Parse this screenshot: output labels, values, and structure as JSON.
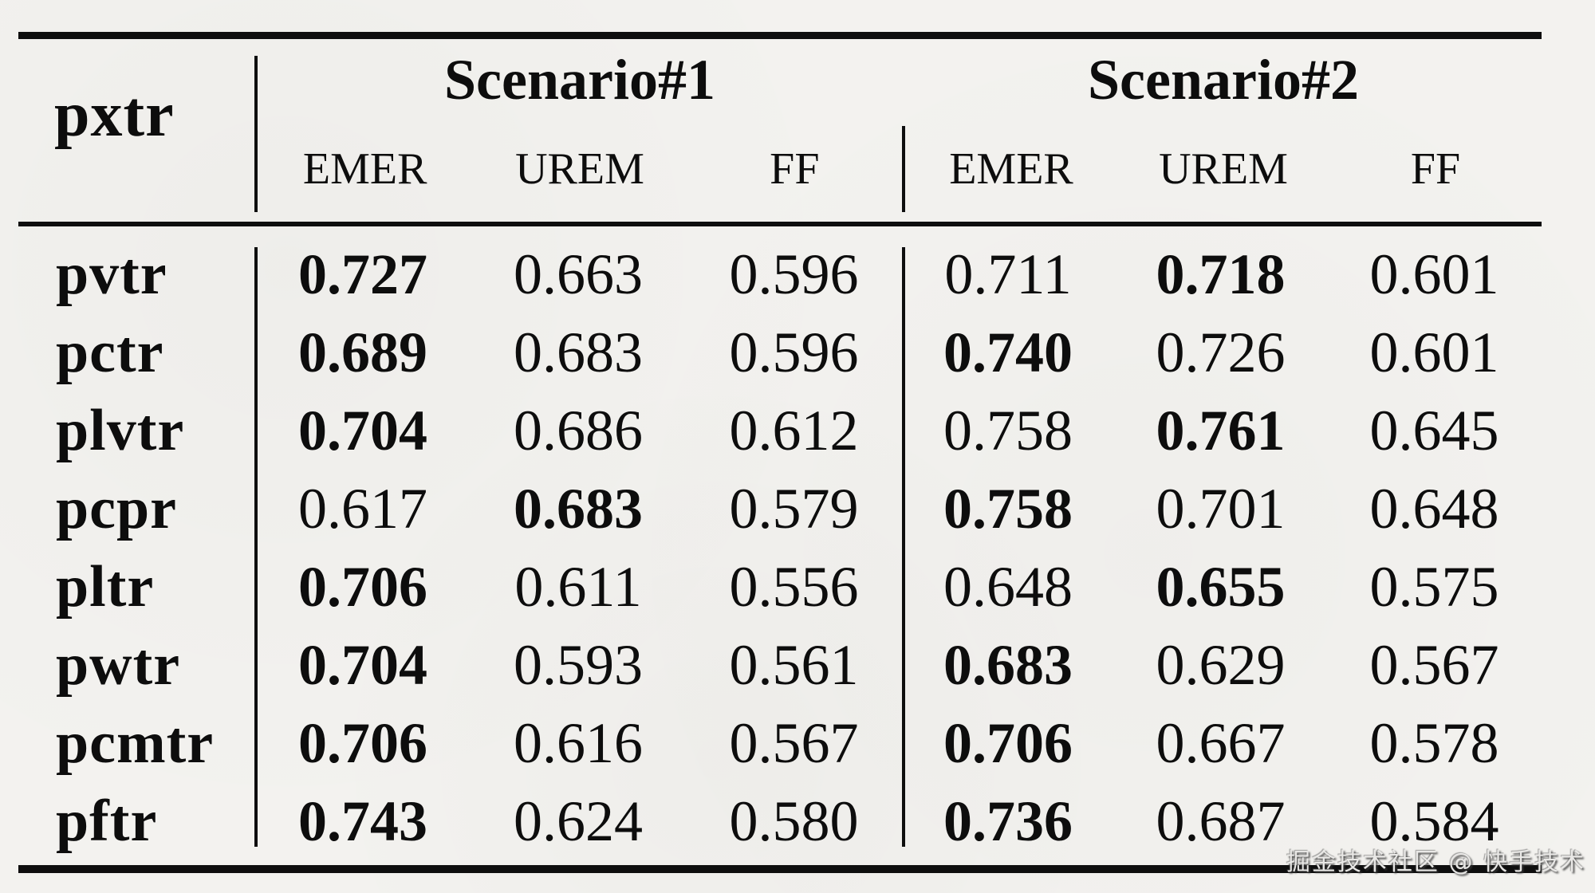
{
  "table": {
    "corner_label": "pxtr",
    "groups": [
      {
        "title": "Scenario#1",
        "columns": [
          "EMER",
          "UREM",
          "FF"
        ]
      },
      {
        "title": "Scenario#2",
        "columns": [
          "EMER",
          "UREM",
          "FF"
        ]
      }
    ],
    "rows": [
      {
        "label": "pvtr",
        "values": [
          "0.727",
          "0.663",
          "0.596",
          "0.711",
          "0.718",
          "0.601"
        ],
        "bold": [
          true,
          false,
          false,
          false,
          true,
          false
        ]
      },
      {
        "label": "pctr",
        "values": [
          "0.689",
          "0.683",
          "0.596",
          "0.740",
          "0.726",
          "0.601"
        ],
        "bold": [
          true,
          false,
          false,
          true,
          false,
          false
        ]
      },
      {
        "label": "plvtr",
        "values": [
          "0.704",
          "0.686",
          "0.612",
          "0.758",
          "0.761",
          "0.645"
        ],
        "bold": [
          true,
          false,
          false,
          false,
          true,
          false
        ]
      },
      {
        "label": "pcpr",
        "values": [
          "0.617",
          "0.683",
          "0.579",
          "0.758",
          "0.701",
          "0.648"
        ],
        "bold": [
          false,
          true,
          false,
          true,
          false,
          false
        ]
      },
      {
        "label": "pltr",
        "values": [
          "0.706",
          "0.611",
          "0.556",
          "0.648",
          "0.655",
          "0.575"
        ],
        "bold": [
          true,
          false,
          false,
          false,
          true,
          false
        ]
      },
      {
        "label": "pwtr",
        "values": [
          "0.704",
          "0.593",
          "0.561",
          "0.683",
          "0.629",
          "0.567"
        ],
        "bold": [
          true,
          false,
          false,
          true,
          false,
          false
        ]
      },
      {
        "label": "pcmtr",
        "values": [
          "0.706",
          "0.616",
          "0.567",
          "0.706",
          "0.667",
          "0.578"
        ],
        "bold": [
          true,
          false,
          false,
          true,
          false,
          false
        ]
      },
      {
        "label": "pftr",
        "values": [
          "0.743",
          "0.624",
          "0.580",
          "0.736",
          "0.687",
          "0.584"
        ],
        "bold": [
          true,
          false,
          false,
          true,
          false,
          false
        ]
      }
    ]
  },
  "chart_data": {
    "type": "table",
    "title": "",
    "row_header": "pxtr",
    "column_groups": [
      "Scenario#1",
      "Scenario#2"
    ],
    "columns": [
      "EMER",
      "UREM",
      "FF",
      "EMER",
      "UREM",
      "FF"
    ],
    "rows": [
      "pvtr",
      "pctr",
      "plvtr",
      "pcpr",
      "pltr",
      "pwtr",
      "pcmtr",
      "pftr"
    ],
    "values": [
      [
        0.727,
        0.663,
        0.596,
        0.711,
        0.718,
        0.601
      ],
      [
        0.689,
        0.683,
        0.596,
        0.74,
        0.726,
        0.601
      ],
      [
        0.704,
        0.686,
        0.612,
        0.758,
        0.761,
        0.645
      ],
      [
        0.617,
        0.683,
        0.579,
        0.758,
        0.701,
        0.648
      ],
      [
        0.706,
        0.611,
        0.556,
        0.648,
        0.655,
        0.575
      ],
      [
        0.704,
        0.593,
        0.561,
        0.683,
        0.629,
        0.567
      ],
      [
        0.706,
        0.616,
        0.567,
        0.706,
        0.667,
        0.578
      ],
      [
        0.743,
        0.624,
        0.58,
        0.736,
        0.687,
        0.584
      ]
    ]
  },
  "watermark": "掘金技术社区 @ 快手技术",
  "colors": {
    "background": "#f3f2ef",
    "text": "#0d0d0d",
    "rule": "#0e0e0e",
    "watermark": "#e9e8e6"
  }
}
